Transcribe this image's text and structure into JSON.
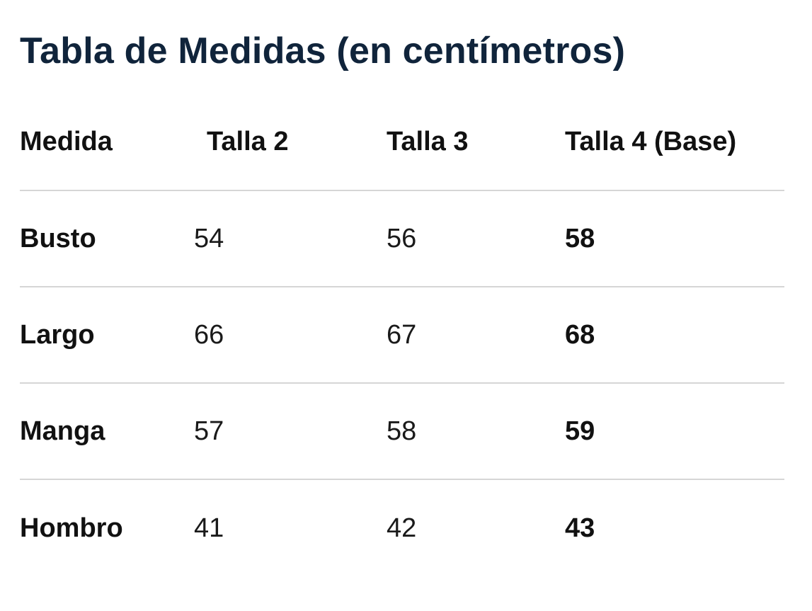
{
  "title": "Tabla de Medidas (en centímetros)",
  "table": {
    "headers": [
      "Medida",
      "Talla 2",
      "Talla 3",
      "Talla 4 (Base)"
    ],
    "rows": [
      {
        "label": "Busto",
        "values": [
          "54",
          "56",
          "58"
        ]
      },
      {
        "label": "Largo",
        "values": [
          "66",
          "67",
          "68"
        ]
      },
      {
        "label": "Manga",
        "values": [
          "57",
          "58",
          "59"
        ]
      },
      {
        "label": "Hombro",
        "values": [
          "41",
          "42",
          "43"
        ]
      }
    ]
  }
}
